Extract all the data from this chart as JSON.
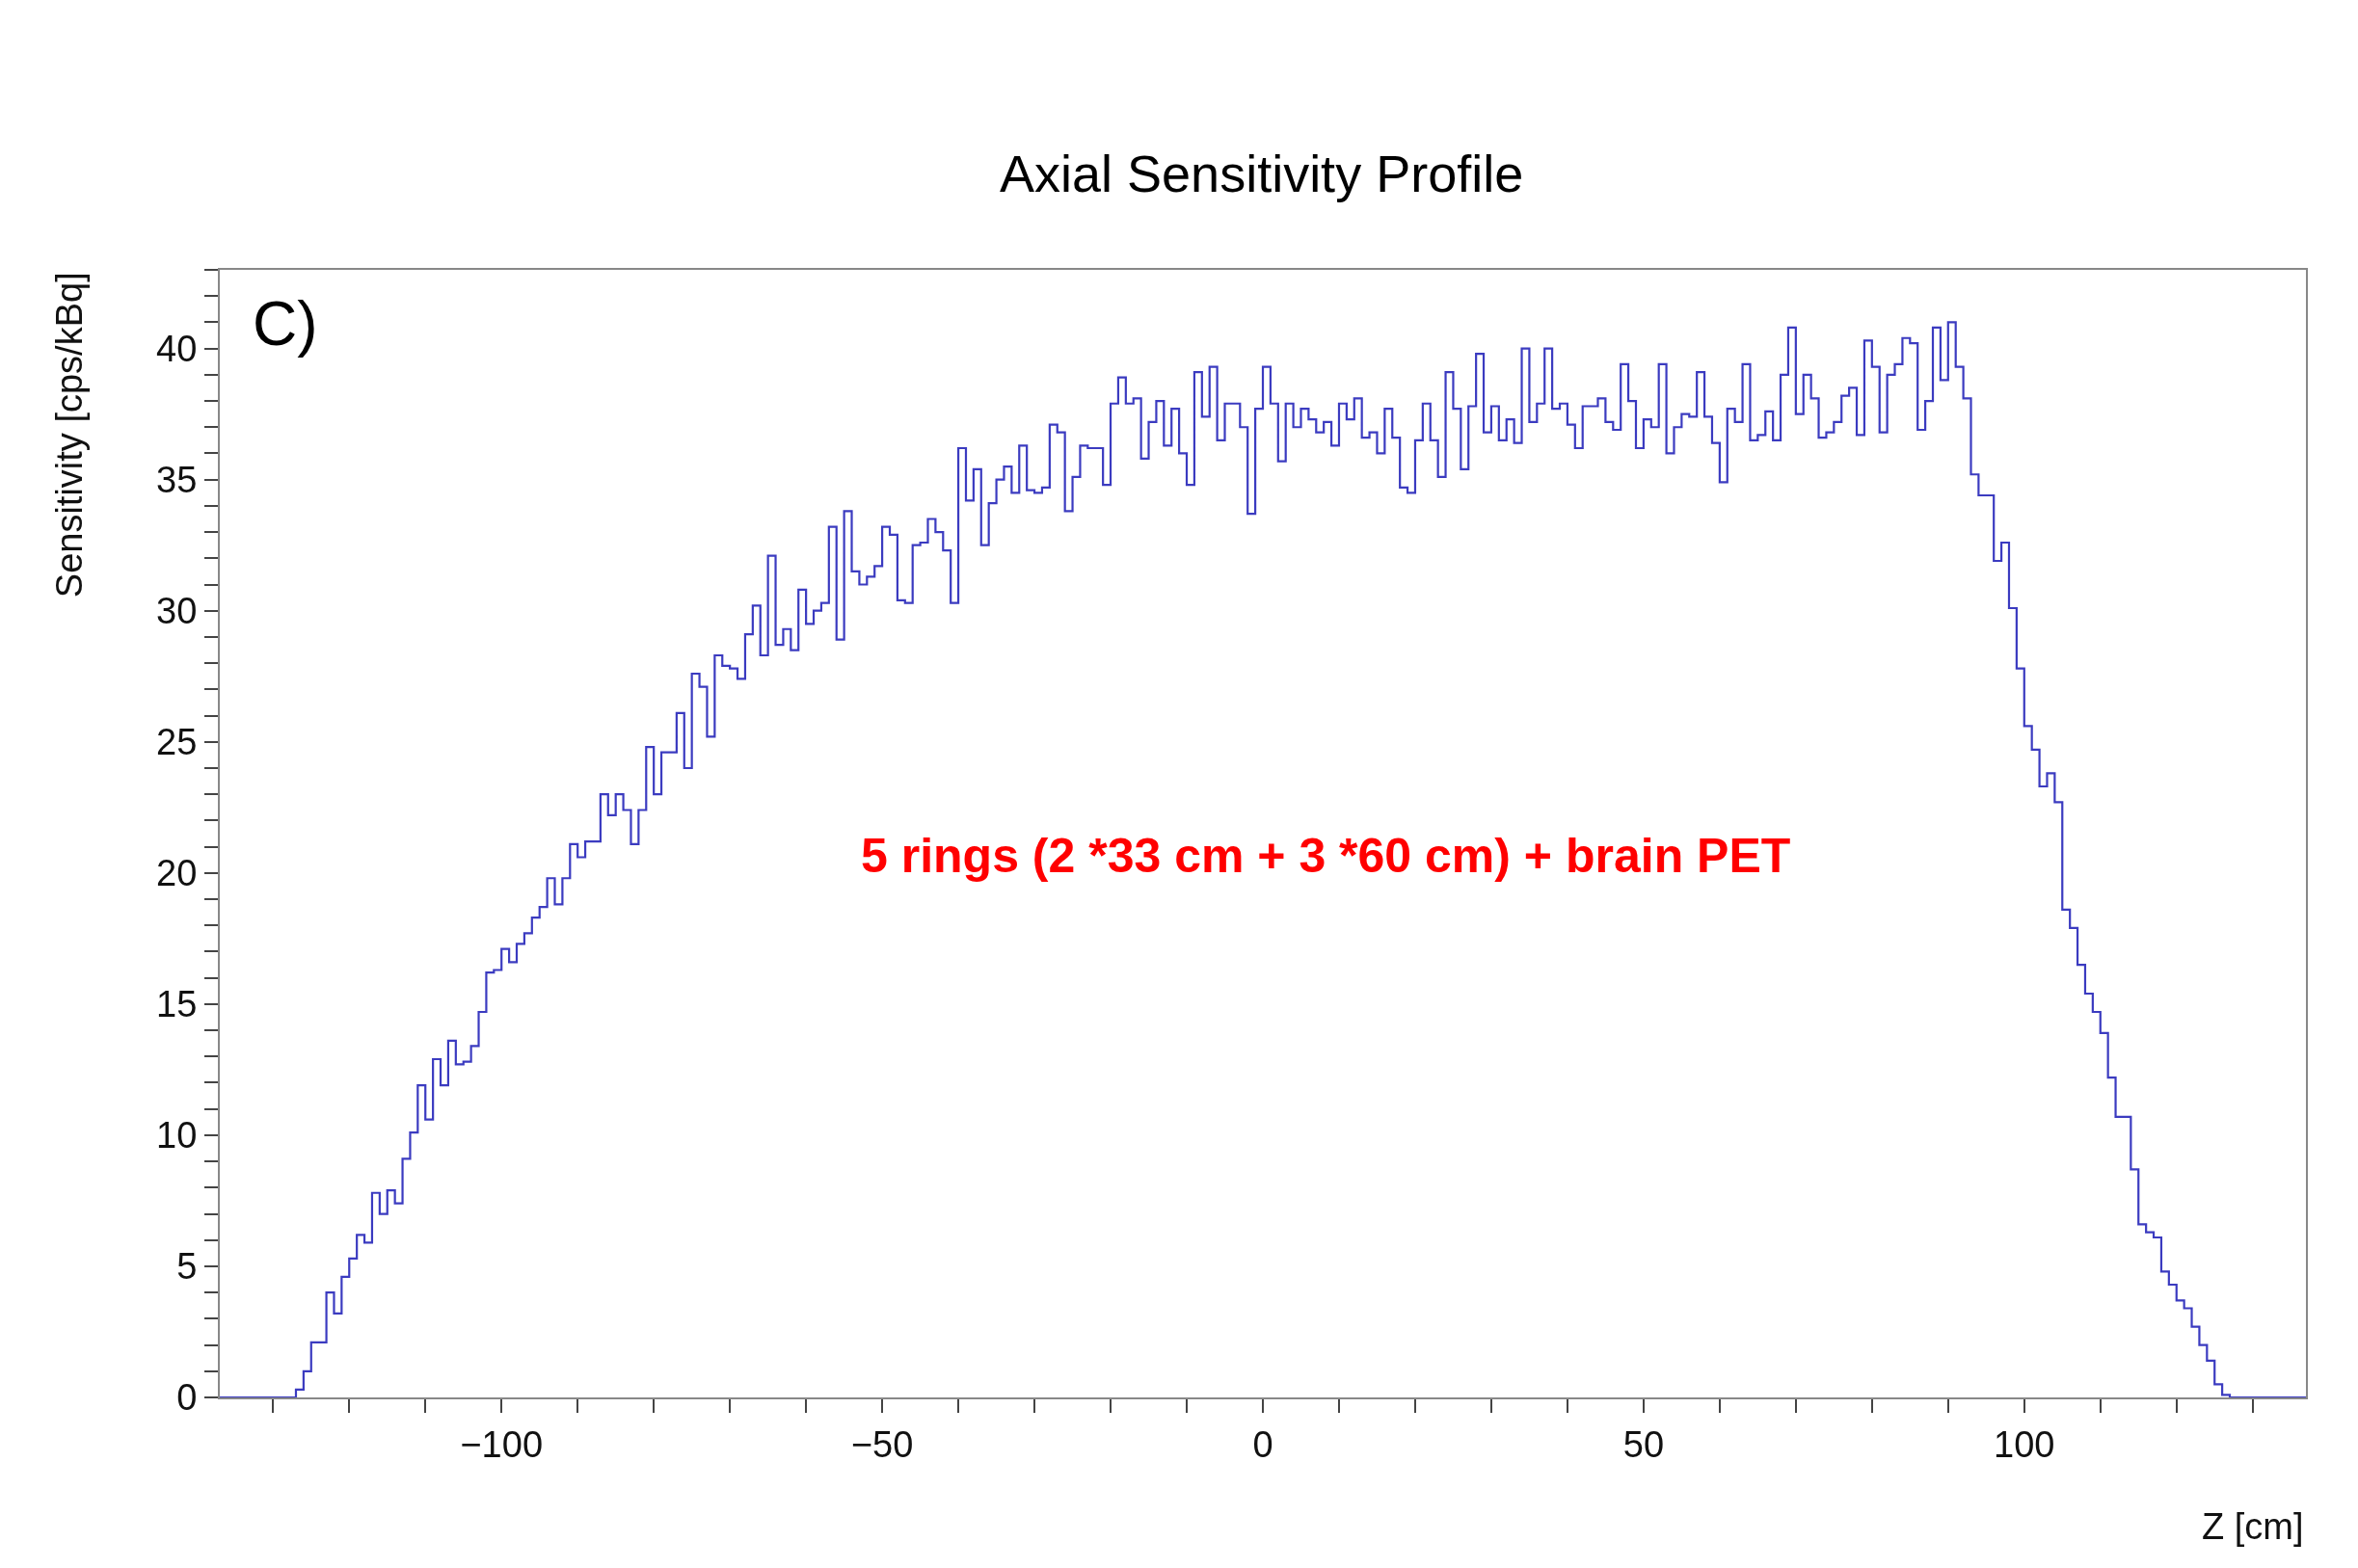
{
  "chart_data": {
    "type": "step",
    "title": "Axial Sensitivity Profile",
    "xlabel": "Z [cm]",
    "ylabel": "Sensitivity [cps/kBq]",
    "annotations": [
      "C)",
      "5 rings (2 *33 cm + 3 *60 cm) + brain PET"
    ],
    "color": "#3b3bc0",
    "x": [
      -137,
      -127,
      -126,
      -125,
      -124,
      -123,
      -122,
      -121,
      -120,
      -119,
      -118,
      -117,
      -116,
      -115,
      -114,
      -113,
      -112,
      -111,
      -110,
      -109,
      -108,
      -107,
      -106,
      -105,
      -104,
      -103,
      -102,
      -101,
      -100,
      -99,
      -98,
      -97,
      -96,
      -95,
      -94,
      -93,
      -92,
      -91,
      -90,
      -89,
      -88,
      -87,
      -86,
      -85,
      -84,
      -83,
      -82,
      -81,
      -80,
      -79,
      -78,
      -77,
      -76,
      -75,
      -74,
      -73,
      -72,
      -71,
      -70,
      -69,
      -68,
      -67,
      -66,
      -65,
      -64,
      -63,
      -62,
      -61,
      -60,
      -59,
      -58,
      -57,
      -56,
      -55,
      -54,
      -53,
      -52,
      -51,
      -50,
      -49,
      -48,
      -47,
      -46,
      -45,
      -44,
      -43,
      -42,
      -41,
      -40,
      -39,
      -38,
      -37,
      -36,
      -35,
      -34,
      -33,
      -32,
      -31,
      -30,
      -29,
      -28,
      -27,
      -26,
      -25,
      -24,
      -23,
      -22,
      -21,
      -20,
      -19,
      -18,
      -17,
      -16,
      -15,
      -14,
      -13,
      -12,
      -11,
      -10,
      -9,
      -8,
      -7,
      -6,
      -5,
      -4,
      -3,
      -2,
      -1,
      0,
      1,
      2,
      3,
      4,
      5,
      6,
      7,
      8,
      9,
      10,
      11,
      12,
      13,
      14,
      15,
      16,
      17,
      18,
      19,
      20,
      21,
      22,
      23,
      24,
      25,
      26,
      27,
      28,
      29,
      30,
      31,
      32,
      33,
      34,
      35,
      36,
      37,
      38,
      39,
      40,
      41,
      42,
      43,
      44,
      45,
      46,
      47,
      48,
      49,
      50,
      51,
      52,
      53,
      54,
      55,
      56,
      57,
      58,
      59,
      60,
      61,
      62,
      63,
      64,
      65,
      66,
      67,
      68,
      69,
      70,
      71,
      72,
      73,
      74,
      75,
      76,
      77,
      78,
      79,
      80,
      81,
      82,
      83,
      84,
      85,
      86,
      87,
      88,
      89,
      90,
      91,
      92,
      93,
      94,
      95,
      96,
      97,
      98,
      99,
      100,
      101,
      102,
      103,
      104,
      105,
      106,
      107,
      108,
      109,
      110,
      111,
      112,
      113,
      114,
      115,
      116,
      117,
      118,
      119,
      120,
      121,
      122,
      123,
      124,
      125,
      126,
      127,
      137
    ],
    "values": [
      0,
      0.3,
      1.0,
      2.1,
      2.1,
      4.0,
      3.2,
      4.6,
      5.3,
      6.2,
      5.9,
      7.8,
      7.0,
      7.9,
      7.4,
      9.1,
      10.1,
      11.9,
      10.6,
      12.9,
      11.9,
      13.6,
      12.7,
      12.8,
      13.4,
      14.7,
      16.2,
      16.3,
      17.1,
      16.6,
      17.3,
      17.7,
      18.3,
      18.7,
      19.8,
      18.8,
      19.8,
      21.1,
      20.6,
      21.2,
      21.2,
      23.0,
      22.2,
      23.0,
      22.4,
      21.1,
      22.4,
      24.8,
      23.0,
      24.6,
      24.6,
      26.1,
      24.0,
      27.6,
      27.1,
      25.2,
      28.3,
      27.9,
      27.8,
      27.4,
      29.1,
      30.2,
      28.3,
      32.1,
      28.7,
      29.3,
      28.5,
      30.8,
      29.5,
      30.0,
      30.3,
      33.2,
      28.9,
      33.8,
      31.5,
      31.0,
      31.3,
      31.7,
      33.2,
      32.9,
      30.4,
      30.3,
      32.5,
      32.6,
      33.5,
      33.0,
      32.3,
      30.3,
      36.2,
      34.2,
      35.4,
      32.5,
      34.1,
      35.0,
      35.5,
      34.5,
      36.3,
      34.6,
      34.5,
      34.7,
      37.1,
      36.8,
      33.8,
      35.1,
      36.3,
      36.2,
      36.2,
      34.8,
      37.9,
      38.9,
      37.9,
      38.1,
      35.8,
      37.2,
      38.0,
      36.3,
      37.7,
      36.0,
      34.8,
      39.1,
      37.4,
      39.3,
      36.5,
      37.9,
      37.9,
      37.0,
      33.7,
      37.7,
      39.3,
      37.9,
      35.7,
      37.9,
      37.0,
      37.7,
      37.3,
      36.8,
      37.2,
      36.3,
      37.9,
      37.3,
      38.1,
      36.6,
      36.8,
      36.0,
      37.7,
      36.6,
      34.7,
      34.5,
      36.5,
      37.9,
      36.5,
      35.1,
      39.1,
      37.7,
      35.4,
      37.8,
      39.8,
      36.8,
      37.8,
      36.5,
      37.3,
      36.4,
      40.0,
      37.2,
      37.9,
      40.0,
      37.7,
      37.9,
      37.1,
      36.2,
      37.8,
      37.8,
      38.1,
      37.2,
      36.9,
      39.4,
      38.0,
      36.2,
      37.3,
      37.0,
      39.4,
      36.0,
      37.0,
      37.5,
      37.4,
      39.1,
      37.4,
      36.4,
      34.9,
      37.7,
      37.2,
      39.4,
      36.5,
      36.7,
      37.6,
      36.5,
      39.0,
      40.8,
      37.5,
      39.0,
      38.1,
      36.6,
      36.8,
      37.2,
      38.2,
      38.5,
      36.7,
      40.3,
      39.3,
      36.8,
      39.0,
      39.4,
      40.4,
      40.2,
      36.9,
      38.0,
      40.8,
      38.8,
      41.0,
      39.3,
      38.1,
      35.2,
      34.4,
      34.4,
      31.9,
      32.6,
      30.1,
      27.8,
      25.6,
      24.7,
      23.3,
      23.8,
      22.7,
      18.6,
      17.9,
      16.5,
      15.4,
      14.7,
      13.9,
      12.2,
      10.7,
      10.7,
      8.7,
      6.6,
      6.3,
      6.1,
      4.8,
      4.3,
      3.7,
      3.4,
      2.7,
      2.0,
      1.4,
      0.5,
      0.1,
      0,
      0
    ],
    "xlim": [
      -137,
      137
    ],
    "xticks": [
      {
        "value": -130,
        "label": null
      },
      {
        "value": -120,
        "label": null
      },
      {
        "value": -110,
        "label": null
      },
      -100,
      {
        "value": -90,
        "label": null
      },
      {
        "value": -80,
        "label": null
      },
      {
        "value": -70,
        "label": null
      },
      {
        "value": -60,
        "label": null
      },
      -50,
      {
        "value": -40,
        "label": null
      },
      {
        "value": -30,
        "label": null
      },
      {
        "value": -20,
        "label": null
      },
      {
        "value": -10,
        "label": null
      },
      0,
      {
        "value": 10,
        "label": null
      },
      {
        "value": 20,
        "label": null
      },
      {
        "value": 30,
        "label": null
      },
      {
        "value": 40,
        "label": null
      },
      50,
      {
        "value": 60,
        "label": null
      },
      {
        "value": 70,
        "label": null
      },
      {
        "value": 80,
        "label": null
      },
      {
        "value": 90,
        "label": null
      },
      100,
      {
        "value": 110,
        "label": null
      },
      {
        "value": 120,
        "label": null
      },
      {
        "value": 130,
        "label": null
      }
    ],
    "ylim": [
      0,
      43
    ],
    "yticks": [
      0,
      {
        "value": 1,
        "label": null
      },
      {
        "value": 2,
        "label": null
      },
      {
        "value": 3,
        "label": null
      },
      {
        "value": 4,
        "label": null
      },
      5,
      {
        "value": 6,
        "label": null
      },
      {
        "value": 7,
        "label": null
      },
      {
        "value": 8,
        "label": null
      },
      {
        "value": 9,
        "label": null
      },
      10,
      {
        "value": 11,
        "label": null
      },
      {
        "value": 12,
        "label": null
      },
      {
        "value": 13,
        "label": null
      },
      {
        "value": 14,
        "label": null
      },
      15,
      {
        "value": 16,
        "label": null
      },
      {
        "value": 17,
        "label": null
      },
      {
        "value": 18,
        "label": null
      },
      {
        "value": 19,
        "label": null
      },
      20,
      {
        "value": 21,
        "label": null
      },
      {
        "value": 22,
        "label": null
      },
      {
        "value": 23,
        "label": null
      },
      {
        "value": 24,
        "label": null
      },
      25,
      {
        "value": 26,
        "label": null
      },
      {
        "value": 27,
        "label": null
      },
      {
        "value": 28,
        "label": null
      },
      {
        "value": 29,
        "label": null
      },
      30,
      {
        "value": 31,
        "label": null
      },
      {
        "value": 32,
        "label": null
      },
      {
        "value": 33,
        "label": null
      },
      {
        "value": 34,
        "label": null
      },
      35,
      {
        "value": 36,
        "label": null
      },
      {
        "value": 37,
        "label": null
      },
      {
        "value": 38,
        "label": null
      },
      {
        "value": 39,
        "label": null
      },
      40,
      {
        "value": 41,
        "label": null
      },
      {
        "value": 42,
        "label": null
      },
      {
        "value": 43,
        "label": null
      }
    ]
  }
}
